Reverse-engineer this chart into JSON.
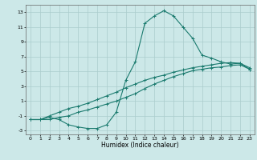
{
  "xlabel": "Humidex (Indice chaleur)",
  "bg_color": "#cce8e8",
  "grid_color": "#aacccc",
  "line_color": "#1a7a6e",
  "xlim": [
    -0.5,
    23.5
  ],
  "ylim": [
    -3.5,
    14.0
  ],
  "xticks": [
    0,
    1,
    2,
    3,
    4,
    5,
    6,
    7,
    8,
    9,
    10,
    11,
    12,
    13,
    14,
    15,
    16,
    17,
    18,
    19,
    20,
    21,
    22,
    23
  ],
  "yticks": [
    -3,
    -1,
    1,
    3,
    5,
    7,
    9,
    11,
    13
  ],
  "curve1_x": [
    0,
    1,
    2,
    3,
    4,
    5,
    6,
    7,
    8,
    9,
    10,
    11,
    12,
    13,
    14,
    15,
    16,
    17,
    18,
    19,
    20,
    21,
    22,
    23
  ],
  "curve1_y": [
    -1.5,
    -1.5,
    -1.5,
    -1.2,
    -1.0,
    -0.5,
    -0.2,
    0.2,
    0.6,
    1.0,
    1.5,
    2.0,
    2.7,
    3.3,
    3.8,
    4.3,
    4.7,
    5.1,
    5.3,
    5.5,
    5.6,
    5.8,
    5.9,
    5.3
  ],
  "curve2_x": [
    0,
    1,
    2,
    3,
    4,
    5,
    6,
    7,
    8,
    9,
    10,
    11,
    12,
    13,
    14,
    15,
    16,
    17,
    18,
    19,
    20,
    21,
    22,
    23
  ],
  "curve2_y": [
    -1.5,
    -1.5,
    -1.0,
    -0.5,
    0.0,
    0.3,
    0.7,
    1.2,
    1.7,
    2.2,
    2.8,
    3.3,
    3.8,
    4.2,
    4.5,
    4.9,
    5.2,
    5.5,
    5.7,
    5.9,
    6.1,
    6.2,
    6.1,
    5.3
  ],
  "curve3_x": [
    0,
    1,
    2,
    3,
    4,
    5,
    6,
    7,
    8,
    9,
    10,
    11,
    12,
    13,
    14,
    15,
    16,
    17,
    18,
    19,
    20,
    21,
    22,
    23
  ],
  "curve3_y": [
    -1.5,
    -1.5,
    -1.2,
    -1.5,
    -2.2,
    -2.5,
    -2.7,
    -2.7,
    -2.2,
    -0.5,
    3.8,
    6.3,
    11.5,
    12.5,
    13.2,
    12.5,
    11.0,
    9.5,
    7.2,
    6.8,
    6.3,
    6.0,
    6.1,
    5.5
  ]
}
